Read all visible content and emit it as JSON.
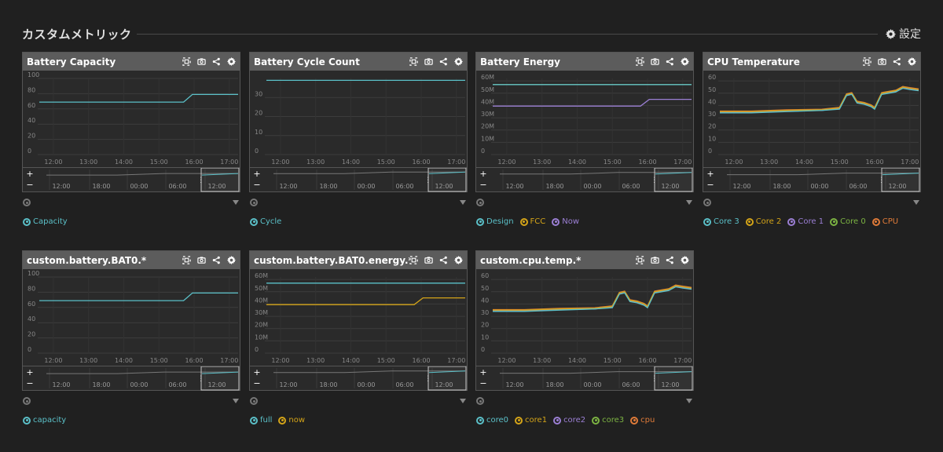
{
  "header": {
    "title": "カスタムメトリック",
    "settings_label": "設定"
  },
  "navigator": {
    "ticks": [
      "12:00",
      "18:00",
      "00:00",
      "06:00",
      "12:00"
    ]
  },
  "chart_data": [
    {
      "id": "battery-capacity",
      "type": "line",
      "title": "Battery Capacity",
      "ylim": [
        0,
        100
      ],
      "yticks": [
        0,
        20,
        40,
        60,
        80,
        100
      ],
      "yformat": "",
      "x_ticks": [
        "12:00",
        "13:00",
        "14:00",
        "15:00",
        "16:00",
        "17:00"
      ],
      "series": [
        {
          "name": "Capacity",
          "color": "#5bc0c8",
          "x": [
            11.6,
            15.7,
            15.95,
            17.25
          ],
          "y": [
            69,
            69,
            79,
            79
          ]
        }
      ]
    },
    {
      "id": "battery-cycle-count",
      "type": "line",
      "title": "Battery Cycle Count",
      "ylim": [
        0,
        40
      ],
      "yticks": [
        0,
        10,
        20,
        30
      ],
      "yformat": "",
      "x_ticks": [
        "12:00",
        "13:00",
        "14:00",
        "15:00",
        "16:00",
        "17:00"
      ],
      "series": [
        {
          "name": "Cycle",
          "color": "#5bc0c8",
          "x": [
            11.6,
            17.25
          ],
          "y": [
            39,
            39
          ]
        }
      ]
    },
    {
      "id": "battery-energy",
      "type": "line",
      "title": "Battery Energy",
      "ylim": [
        0,
        62
      ],
      "yticks": [
        0,
        10,
        20,
        30,
        40,
        50,
        60
      ],
      "yformat": "M",
      "x_ticks": [
        "12:00",
        "13:00",
        "14:00",
        "15:00",
        "16:00",
        "17:00"
      ],
      "series": [
        {
          "name": "Design",
          "color": "#5bc0c8",
          "x": [
            11.6,
            17.25
          ],
          "y": [
            57,
            57
          ]
        },
        {
          "name": "FCC",
          "color": "#d4a418",
          "x": [
            11.6,
            17.25
          ],
          "y": [
            57,
            57
          ]
        },
        {
          "name": "Now",
          "color": "#9b7fd4",
          "x": [
            11.6,
            15.8,
            16.05,
            17.25
          ],
          "y": [
            39.5,
            39.5,
            45,
            45
          ]
        }
      ]
    },
    {
      "id": "cpu-temperature",
      "type": "line",
      "title": "CPU Temperature",
      "ylim": [
        0,
        62
      ],
      "yticks": [
        0,
        10,
        20,
        30,
        40,
        50,
        60
      ],
      "yformat": "",
      "x_ticks": [
        "12:00",
        "13:00",
        "14:00",
        "15:00",
        "16:00",
        "17:00"
      ],
      "series": [
        {
          "name": "Core 3",
          "color": "#5bc0c8",
          "x": [
            11.6,
            12.5,
            13.5,
            14.5,
            15.0,
            15.2,
            15.35,
            15.5,
            15.7,
            15.9,
            16.0,
            16.2,
            16.4,
            16.6,
            16.8,
            17.0,
            17.25
          ],
          "y": [
            34,
            34,
            35,
            36,
            37,
            48,
            49,
            42,
            41,
            39,
            37,
            49,
            50,
            51,
            54,
            53,
            52
          ]
        },
        {
          "name": "Core 2",
          "color": "#d4a418",
          "x": [
            11.6,
            12.5,
            13.5,
            14.5,
            15.0,
            15.2,
            15.35,
            15.5,
            15.7,
            15.9,
            16.0,
            16.2,
            16.4,
            16.6,
            16.8,
            17.0,
            17.25
          ],
          "y": [
            35,
            35,
            36,
            36.5,
            38,
            49,
            50,
            43,
            42,
            40,
            38,
            50,
            51,
            52,
            55,
            54,
            53
          ]
        },
        {
          "name": "Core 1",
          "color": "#9b7fd4",
          "x": [
            11.6,
            12.5,
            13.5,
            14.5,
            15.0,
            15.2,
            15.35,
            15.5,
            15.7,
            15.9,
            16.0,
            16.2,
            16.4,
            16.6,
            16.8,
            17.0,
            17.25
          ],
          "y": [
            34.5,
            34.5,
            35.5,
            36,
            37.5,
            48.5,
            49.5,
            42.5,
            41.5,
            39.5,
            37.5,
            49.5,
            50.5,
            51.5,
            54.5,
            53.5,
            52.5
          ]
        },
        {
          "name": "Core 0",
          "color": "#7cb342",
          "x": [
            11.6,
            12.5,
            13.5,
            14.5,
            15.0,
            15.2,
            15.35,
            15.5,
            15.7,
            15.9,
            16.0,
            16.2,
            16.4,
            16.6,
            16.8,
            17.0,
            17.25
          ],
          "y": [
            35,
            35,
            36,
            36.5,
            38,
            49,
            50,
            43,
            42,
            40,
            38,
            50,
            51,
            52,
            55,
            54,
            53
          ]
        },
        {
          "name": "CPU",
          "color": "#e07b39",
          "x": [
            11.6,
            12.5,
            13.5,
            14.5,
            15.0,
            15.2,
            15.35,
            15.5,
            15.7,
            15.9,
            16.0,
            16.2,
            16.4,
            16.6,
            16.8,
            17.0,
            17.25
          ],
          "y": [
            35.5,
            35.5,
            36.5,
            37,
            38.5,
            49.5,
            50.5,
            43.5,
            42.5,
            40.5,
            38.5,
            50.5,
            51.5,
            52.5,
            55.5,
            54.5,
            53.5
          ]
        }
      ]
    },
    {
      "id": "custom-battery-bat0",
      "type": "line",
      "title": "custom.battery.BAT0.*",
      "ylim": [
        0,
        100
      ],
      "yticks": [
        0,
        20,
        40,
        60,
        80,
        100
      ],
      "yformat": "",
      "x_ticks": [
        "12:00",
        "13:00",
        "14:00",
        "15:00",
        "16:00",
        "17:00"
      ],
      "series": [
        {
          "name": "capacity",
          "color": "#5bc0c8",
          "x": [
            11.6,
            15.7,
            15.95,
            17.25
          ],
          "y": [
            69,
            69,
            79,
            79
          ]
        }
      ]
    },
    {
      "id": "custom-battery-bat0-energy",
      "type": "line",
      "title": "custom.battery.BAT0.energy.*",
      "ylim": [
        0,
        62
      ],
      "yticks": [
        0,
        10,
        20,
        30,
        40,
        50,
        60
      ],
      "yformat": "M",
      "x_ticks": [
        "12:00",
        "13:00",
        "14:00",
        "15:00",
        "16:00",
        "17:00"
      ],
      "series": [
        {
          "name": "full",
          "color": "#5bc0c8",
          "x": [
            11.6,
            17.25
          ],
          "y": [
            57,
            57
          ]
        },
        {
          "name": "now",
          "color": "#d4a418",
          "x": [
            11.6,
            15.8,
            16.05,
            17.25
          ],
          "y": [
            39.5,
            39.5,
            45,
            45
          ]
        }
      ]
    },
    {
      "id": "custom-cpu-temp",
      "type": "line",
      "title": "custom.cpu.temp.*",
      "ylim": [
        0,
        62
      ],
      "yticks": [
        0,
        10,
        20,
        30,
        40,
        50,
        60
      ],
      "yformat": "",
      "x_ticks": [
        "12:00",
        "13:00",
        "14:00",
        "15:00",
        "16:00",
        "17:00"
      ],
      "series": [
        {
          "name": "core0",
          "color": "#5bc0c8",
          "x": [
            11.6,
            12.5,
            13.5,
            14.5,
            15.0,
            15.2,
            15.35,
            15.5,
            15.7,
            15.9,
            16.0,
            16.2,
            16.4,
            16.6,
            16.8,
            17.0,
            17.25
          ],
          "y": [
            34,
            34,
            35,
            36,
            37,
            48,
            49,
            42,
            41,
            39,
            37,
            49,
            50,
            51,
            54,
            53,
            52
          ]
        },
        {
          "name": "core1",
          "color": "#d4a418",
          "x": [
            11.6,
            12.5,
            13.5,
            14.5,
            15.0,
            15.2,
            15.35,
            15.5,
            15.7,
            15.9,
            16.0,
            16.2,
            16.4,
            16.6,
            16.8,
            17.0,
            17.25
          ],
          "y": [
            35,
            35,
            36,
            36.5,
            38,
            49,
            50,
            43,
            42,
            40,
            38,
            50,
            51,
            52,
            55,
            54,
            53
          ]
        },
        {
          "name": "core2",
          "color": "#9b7fd4",
          "x": [
            11.6,
            12.5,
            13.5,
            14.5,
            15.0,
            15.2,
            15.35,
            15.5,
            15.7,
            15.9,
            16.0,
            16.2,
            16.4,
            16.6,
            16.8,
            17.0,
            17.25
          ],
          "y": [
            34.5,
            34.5,
            35.5,
            36,
            37.5,
            48.5,
            49.5,
            42.5,
            41.5,
            39.5,
            37.5,
            49.5,
            50.5,
            51.5,
            54.5,
            53.5,
            52.5
          ]
        },
        {
          "name": "core3",
          "color": "#7cb342",
          "x": [
            11.6,
            12.5,
            13.5,
            14.5,
            15.0,
            15.2,
            15.35,
            15.5,
            15.7,
            15.9,
            16.0,
            16.2,
            16.4,
            16.6,
            16.8,
            17.0,
            17.25
          ],
          "y": [
            35,
            35,
            36,
            36.5,
            38,
            49,
            50,
            43,
            42,
            40,
            38,
            50,
            51,
            52,
            55,
            54,
            53
          ]
        },
        {
          "name": "cpu",
          "color": "#e07b39",
          "x": [
            11.6,
            12.5,
            13.5,
            14.5,
            15.0,
            15.2,
            15.35,
            15.5,
            15.7,
            15.9,
            16.0,
            16.2,
            16.4,
            16.6,
            16.8,
            17.0,
            17.25
          ],
          "y": [
            35.5,
            35.5,
            36.5,
            37,
            38.5,
            49.5,
            50.5,
            43.5,
            42.5,
            40.5,
            38.5,
            50.5,
            51.5,
            52.5,
            55.5,
            54.5,
            53.5
          ]
        }
      ]
    }
  ]
}
